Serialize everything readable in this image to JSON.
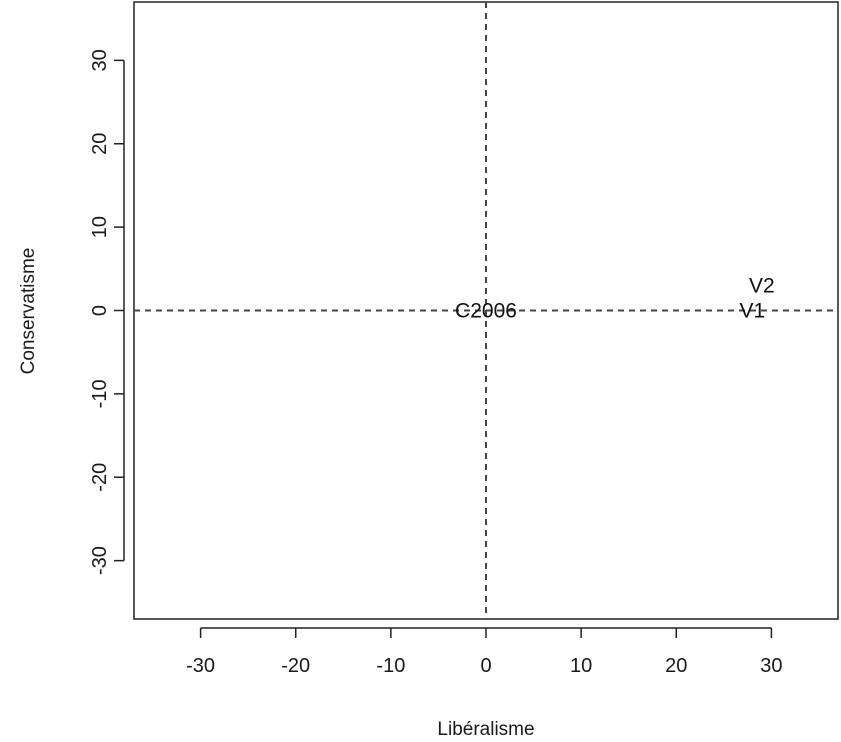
{
  "chart_data": {
    "type": "scatter",
    "title": "",
    "xlabel": "Libéralisme",
    "ylabel": "Conservatisme",
    "xlim": [
      -37,
      37
    ],
    "ylim": [
      -37,
      37
    ],
    "xticks": [
      -30,
      -20,
      -10,
      0,
      10,
      20,
      30
    ],
    "yticks": [
      -30,
      -20,
      -10,
      0,
      10,
      20,
      30
    ],
    "reference_lines": {
      "x": 0,
      "y": 0,
      "style": "dashed"
    },
    "points": [
      {
        "label": "C2006",
        "x": 0,
        "y": 0
      },
      {
        "label": "V2",
        "x": 29,
        "y": 3
      },
      {
        "label": "V1",
        "x": 28,
        "y": 0
      }
    ],
    "grid": false
  }
}
